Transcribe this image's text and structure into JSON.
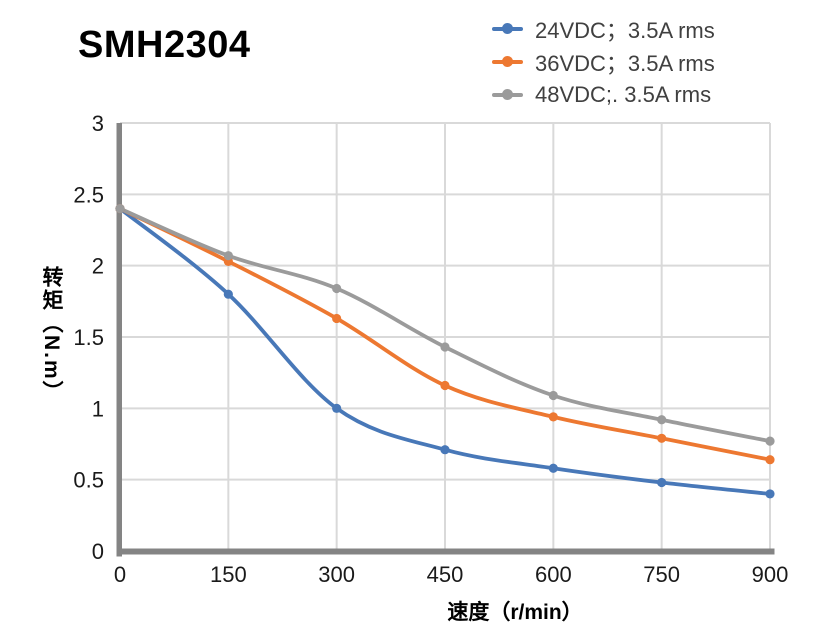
{
  "title": "SMH2304",
  "legend": {
    "items": [
      {
        "label": "24VDC；3.5A rms",
        "color": "#4878B8"
      },
      {
        "label": "36VDC；3.5A rms",
        "color": "#ED7831"
      },
      {
        "label": "48VDC;. 3.5A rms",
        "color": "#9B9B9B"
      }
    ]
  },
  "chart_data": {
    "type": "line",
    "x": [
      0,
      150,
      300,
      450,
      600,
      750,
      900
    ],
    "series": [
      {
        "name": "24VDC；3.5A rms",
        "color": "#4878B8",
        "values": [
          2.4,
          1.8,
          1.0,
          0.71,
          0.58,
          0.48,
          0.4
        ]
      },
      {
        "name": "36VDC；3.5A rms",
        "color": "#ED7831",
        "values": [
          2.4,
          2.03,
          1.63,
          1.16,
          0.94,
          0.79,
          0.64
        ]
      },
      {
        "name": "48VDC;. 3.5A rms",
        "color": "#9B9B9B",
        "values": [
          2.4,
          2.07,
          1.84,
          1.43,
          1.09,
          0.92,
          0.77
        ]
      }
    ],
    "title": "SMH2304",
    "xlabel": "速度（r/min）",
    "ylabel": "转矩（N.m）",
    "xlim": [
      0,
      900
    ],
    "ylim": [
      0,
      3
    ],
    "x_ticks": [
      "0",
      "150",
      "300",
      "450",
      "600",
      "750",
      "900"
    ],
    "y_ticks": [
      "0",
      "0.5",
      "1",
      "1.5",
      "2",
      "2.5",
      "3"
    ],
    "grid": true,
    "smooth": true,
    "legend_position": "top-right",
    "colors": {
      "gridline": "#D9D9D9",
      "axis": "#848484",
      "tick_text": "#1A1A1A",
      "legend_text": "#404040"
    }
  }
}
